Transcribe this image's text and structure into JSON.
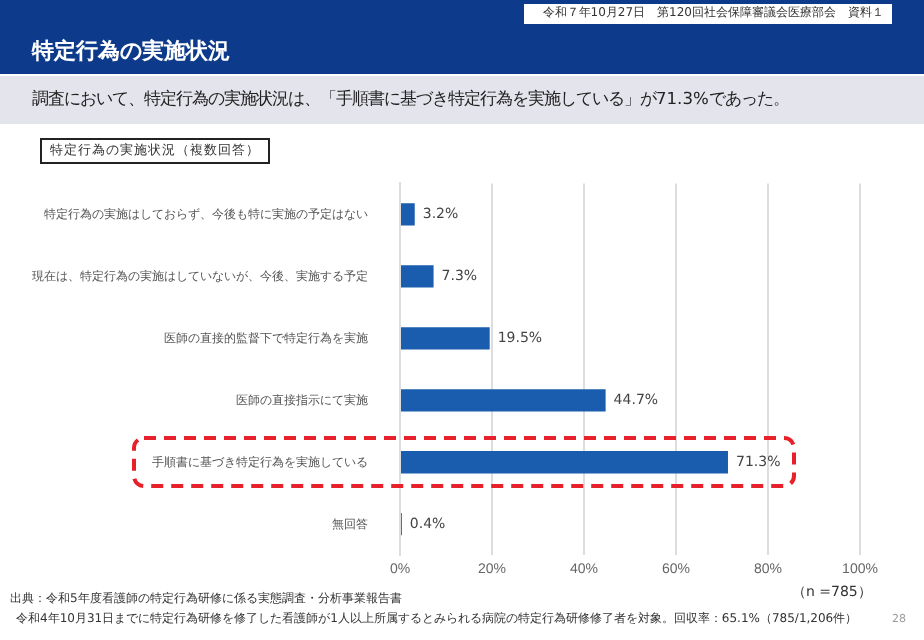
{
  "chart_data": {
    "type": "bar",
    "orientation": "horizontal",
    "title": "特定行為の実施状況",
    "subtitle": "調査において、特定行為の実施状況は、「手順書に基づき特定行為を実施している」が71.3%であった。",
    "categories": [
      "特定行為の実施はしておらず、今後も特に実施の予定はない",
      "現在は、特定行為の実施はしていないが、今後、実施する予定",
      "医師の直接的監督下で特定行為を実施",
      "医師の直接指示にて実施",
      "手順書に基づき特定行為を実施している",
      "無回答"
    ],
    "values": [
      3.2,
      7.3,
      19.5,
      44.7,
      71.3,
      0.4
    ],
    "color": "#1a5cae",
    "value_labels": [
      "3.2%",
      "7.3%",
      "19.5%",
      "44.7%",
      "71.3%",
      "0.4%"
    ],
    "xlim": [
      0,
      100
    ],
    "xticks": [
      {
        "value": 0,
        "label": "0%"
      },
      {
        "value": 20,
        "label": "20%"
      },
      {
        "value": 40,
        "label": "40%"
      },
      {
        "value": 60,
        "label": "60%"
      },
      {
        "value": 80,
        "label": "80%"
      },
      {
        "value": 100,
        "label": "100%"
      }
    ],
    "grid": "x",
    "annotations": [
      "令和７年10月27日　第120回社会保障審議会医療部会　資料１",
      "特定行為の実施状況（複数回答）",
      "（n =785）",
      "出典：令和5年度看護師の特定行為研修に係る実態調査・分析事業報告書",
      "令和4年10月31日までに特定行為研修を修了した看護師が1人以上所属するとみられる病院の特定行為研修修了者を対象。回収率：65.1%（785/1,206件）",
      "28"
    ]
  }
}
